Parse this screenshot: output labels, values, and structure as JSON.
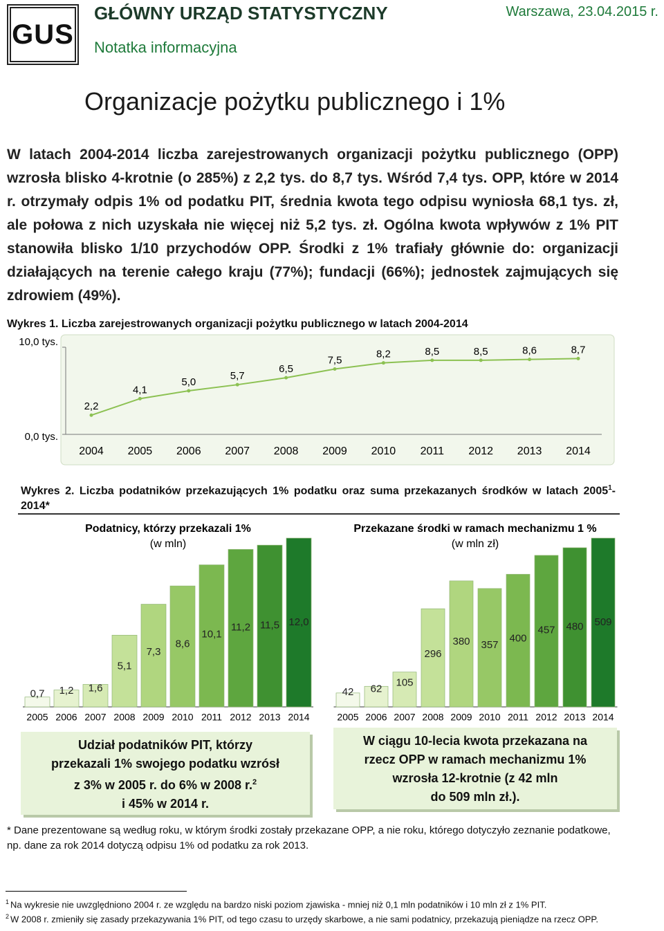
{
  "header": {
    "logo": "GUS",
    "org": "GŁÓWNY URZĄD STATYSTYCZNY",
    "subtitle": "Notatka informacyjna",
    "place_date": "Warszawa, 23.04.2015 r."
  },
  "title": "Organizacje pożytku publicznego i 1%",
  "lead": "W latach 2004-2014 liczba zarejestrowanych organizacji pożytku publicznego (OPP) wzrosła blisko 4-krotnie (o 285%) z 2,2 tys. do 8,7 tys. Wśród 7,4 tys. OPP, które w 2014 r. otrzymały odpis 1% od podatku PIT, średnia kwota tego odpisu wyniosła 68,1 tys. zł, ale połowa z nich uzyskała nie więcej niż 5,2 tys. zł. Ogólna kwota wpływów z 1% PIT stanowiła blisko 1/10 przychodów OPP. Środki z 1% trafiały głównie do: organizacji działających na terenie całego kraju (77%); fundacji (66%); jednostek zajmujących się zdrowiem (49%).",
  "figure2": {
    "title": "Wykres 2. Liczba podatników przekazujących 1% podatku oraz suma przekazanych środków w latach 2005",
    "title_note": "1",
    "title_end": "-2014*"
  },
  "chart_data": [
    {
      "type": "line",
      "title": "Wykres 1. Liczba zarejestrowanych organizacji pożytku publicznego w latach 2004-2014",
      "categories": [
        "2004",
        "2005",
        "2006",
        "2007",
        "2008",
        "2009",
        "2010",
        "2011",
        "2012",
        "2013",
        "2014"
      ],
      "values": [
        2.2,
        4.1,
        5.0,
        5.7,
        6.5,
        7.5,
        8.2,
        8.5,
        8.5,
        8.6,
        8.7
      ],
      "value_labels": [
        "2,2",
        "4,1",
        "5,0",
        "5,7",
        "6,5",
        "7,5",
        "8,2",
        "8,5",
        "8,5",
        "8,6",
        "8,7"
      ],
      "color": "#8cc152",
      "ylim": [
        0,
        10
      ],
      "yticks": [
        {
          "value": 0,
          "label": "0,0 tys."
        },
        {
          "value": 10,
          "label": "10,0 tys."
        }
      ]
    },
    {
      "type": "bar",
      "title": "Podatnicy, którzy przekazali 1%",
      "subtitle": "(w mln)",
      "categories": [
        "2005",
        "2006",
        "2007",
        "2008",
        "2009",
        "2010",
        "2011",
        "2012",
        "2013",
        "2014"
      ],
      "values": [
        0.7,
        1.2,
        1.6,
        5.1,
        7.3,
        8.6,
        10.1,
        11.2,
        11.5,
        12.0
      ],
      "value_labels": [
        "0,7",
        "1,2",
        "1,6",
        "5,1",
        "7,3",
        "8,6",
        "10,1",
        "11,2",
        "11,5",
        "12,0"
      ],
      "colors": [
        "#f4f9ea",
        "#e6f2cf",
        "#d6eab4",
        "#c4e199",
        "#b0d67f",
        "#97c866",
        "#7cb850",
        "#5ea63f",
        "#3f9131",
        "#1e7a2a"
      ]
    },
    {
      "type": "bar",
      "title": "Przekazane środki w ramach mechanizmu 1 %",
      "subtitle": "(w mln zł)",
      "categories": [
        "2005",
        "2006",
        "2007",
        "2008",
        "2009",
        "2010",
        "2011",
        "2012",
        "2013",
        "2014"
      ],
      "values": [
        42,
        62,
        105,
        296,
        380,
        357,
        400,
        457,
        480,
        509
      ],
      "colors": [
        "#f4f9ea",
        "#e6f2cf",
        "#d6eab4",
        "#c4e199",
        "#b0d67f",
        "#97c866",
        "#7cb850",
        "#5ea63f",
        "#3f9131",
        "#1e7a2a"
      ]
    }
  ],
  "box1": {
    "lines": [
      "Udział podatników PIT, którzy",
      "przekazali 1% swojego podatku wzrósł",
      "z 3% w 2005 r. do 6% w 2008 r.",
      "i 45% w 2014 r."
    ],
    "note": "2"
  },
  "box2": {
    "lines": [
      "W ciągu 10-lecia kwota przekazana na",
      "rzecz OPP w ramach mechanizmu 1%",
      "wzrosła 12-krotnie (z 42 mln",
      "do 509 mln zł.)."
    ]
  },
  "note": "* Dane prezentowane są według roku, w którym środki zostały przekazane OPP, a nie roku, którego dotyczyło zeznanie podatkowe, np. dane za rok 2014 dotyczą odpisu 1% od podatku za rok 2013.",
  "footnotes": [
    {
      "mark": "1",
      "text": "Na wykresie nie uwzględniono 2004 r. ze względu na bardzo niski poziom zjawiska - mniej niż 0,1 mln podatników i 10 mln zł z 1% PIT."
    },
    {
      "mark": "2",
      "text": "W 2008 r. zmieniły się zasady przekazywania 1% PIT, od tego czasu to urzędy skarbowe, a nie sami podatnicy, przekazują pieniądze na rzecz OPP."
    }
  ]
}
